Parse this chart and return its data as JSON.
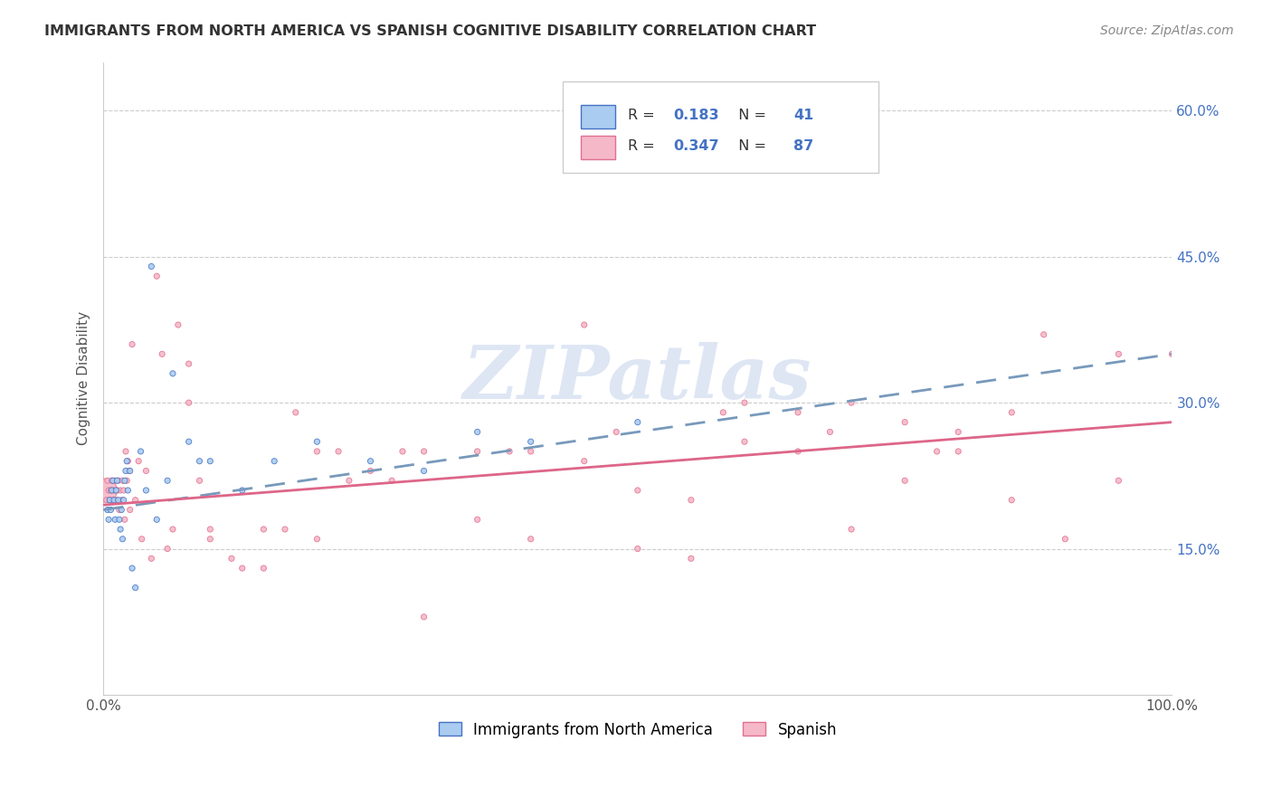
{
  "title": "IMMIGRANTS FROM NORTH AMERICA VS SPANISH COGNITIVE DISABILITY CORRELATION CHART",
  "source": "Source: ZipAtlas.com",
  "ylabel": "Cognitive Disability",
  "ytick_vals": [
    0.15,
    0.3,
    0.45,
    0.6
  ],
  "legend_label1": "Immigrants from North America",
  "legend_label2": "Spanish",
  "R1": "0.183",
  "N1": "41",
  "R2": "0.347",
  "N2": "87",
  "color_blue": "#AACCF0",
  "color_pink": "#F5B8C8",
  "color_blue_dark": "#4472C4",
  "color_pink_dark": "#E07090",
  "line_blue": "#5588CC",
  "line_pink": "#E07090",
  "watermark_color": "#D0DCF0",
  "xlim": [
    0.0,
    1.0
  ],
  "ylim": [
    0.0,
    0.65
  ],
  "blue_x": [
    0.004,
    0.005,
    0.006,
    0.007,
    0.008,
    0.009,
    0.01,
    0.011,
    0.012,
    0.013,
    0.014,
    0.015,
    0.016,
    0.017,
    0.018,
    0.019,
    0.02,
    0.021,
    0.022,
    0.023,
    0.025,
    0.027,
    0.03,
    0.035,
    0.04,
    0.045,
    0.05,
    0.06,
    0.065,
    0.08,
    0.09,
    0.1,
    0.13,
    0.16,
    0.2,
    0.25,
    0.3,
    0.35,
    0.4,
    0.5,
    0.6
  ],
  "blue_y": [
    0.19,
    0.18,
    0.2,
    0.19,
    0.21,
    0.22,
    0.2,
    0.18,
    0.21,
    0.22,
    0.2,
    0.18,
    0.17,
    0.19,
    0.16,
    0.2,
    0.22,
    0.23,
    0.24,
    0.21,
    0.23,
    0.13,
    0.11,
    0.25,
    0.21,
    0.44,
    0.18,
    0.22,
    0.33,
    0.26,
    0.24,
    0.24,
    0.21,
    0.24,
    0.26,
    0.24,
    0.23,
    0.27,
    0.26,
    0.28,
    0.6
  ],
  "blue_s": [
    20,
    20,
    20,
    20,
    20,
    20,
    20,
    20,
    20,
    20,
    20,
    20,
    20,
    20,
    20,
    20,
    20,
    20,
    20,
    20,
    20,
    20,
    20,
    20,
    20,
    20,
    20,
    20,
    20,
    20,
    20,
    20,
    20,
    20,
    20,
    20,
    20,
    20,
    20,
    20,
    20
  ],
  "pink_x": [
    0.002,
    0.003,
    0.004,
    0.005,
    0.006,
    0.007,
    0.008,
    0.009,
    0.01,
    0.011,
    0.012,
    0.013,
    0.014,
    0.015,
    0.016,
    0.017,
    0.018,
    0.019,
    0.02,
    0.021,
    0.022,
    0.023,
    0.024,
    0.025,
    0.027,
    0.03,
    0.033,
    0.036,
    0.04,
    0.045,
    0.05,
    0.055,
    0.06,
    0.065,
    0.07,
    0.08,
    0.09,
    0.1,
    0.12,
    0.15,
    0.17,
    0.2,
    0.23,
    0.27,
    0.3,
    0.35,
    0.4,
    0.45,
    0.5,
    0.55,
    0.6,
    0.65,
    0.7,
    0.75,
    0.8,
    0.85,
    0.9,
    0.95,
    1.0,
    0.5,
    0.3,
    0.4,
    0.2,
    0.6,
    0.7,
    0.8,
    0.35,
    0.45,
    0.55,
    0.65,
    0.75,
    0.85,
    0.25,
    0.15,
    0.1,
    0.13,
    0.08,
    0.18,
    0.22,
    0.28,
    0.38,
    0.48,
    0.58,
    0.68,
    0.78,
    0.88,
    0.95
  ],
  "pink_y": [
    0.21,
    0.2,
    0.22,
    0.21,
    0.2,
    0.21,
    0.22,
    0.2,
    0.21,
    0.22,
    0.2,
    0.21,
    0.22,
    0.19,
    0.21,
    0.2,
    0.22,
    0.21,
    0.18,
    0.25,
    0.22,
    0.24,
    0.23,
    0.19,
    0.36,
    0.2,
    0.24,
    0.16,
    0.23,
    0.14,
    0.43,
    0.35,
    0.15,
    0.17,
    0.38,
    0.34,
    0.22,
    0.17,
    0.14,
    0.17,
    0.17,
    0.16,
    0.22,
    0.22,
    0.08,
    0.25,
    0.16,
    0.38,
    0.21,
    0.14,
    0.26,
    0.25,
    0.17,
    0.22,
    0.25,
    0.2,
    0.16,
    0.22,
    0.35,
    0.15,
    0.25,
    0.25,
    0.25,
    0.3,
    0.3,
    0.27,
    0.18,
    0.24,
    0.2,
    0.29,
    0.28,
    0.29,
    0.23,
    0.13,
    0.16,
    0.13,
    0.3,
    0.29,
    0.25,
    0.25,
    0.25,
    0.27,
    0.29,
    0.27,
    0.25,
    0.37,
    0.35
  ],
  "pink_s": [
    350,
    20,
    20,
    20,
    20,
    20,
    20,
    20,
    20,
    20,
    20,
    20,
    20,
    20,
    20,
    20,
    20,
    20,
    20,
    20,
    20,
    20,
    20,
    20,
    20,
    20,
    20,
    20,
    20,
    20,
    20,
    20,
    20,
    20,
    20,
    20,
    20,
    20,
    20,
    20,
    20,
    20,
    20,
    20,
    20,
    20,
    20,
    20,
    20,
    20,
    20,
    20,
    20,
    20,
    20,
    20,
    20,
    20,
    20,
    20,
    20,
    20,
    20,
    20,
    20,
    20,
    20,
    20,
    20,
    20,
    20,
    20,
    20,
    20,
    20,
    20,
    20,
    20,
    20,
    20,
    20,
    20,
    20,
    20,
    20,
    20,
    20
  ],
  "blue_trend": [
    0.19,
    0.27
  ],
  "pink_trend": [
    0.19,
    0.27
  ],
  "blue_trend_x": [
    0.0,
    0.5
  ],
  "pink_trend_x": [
    0.0,
    1.0
  ]
}
